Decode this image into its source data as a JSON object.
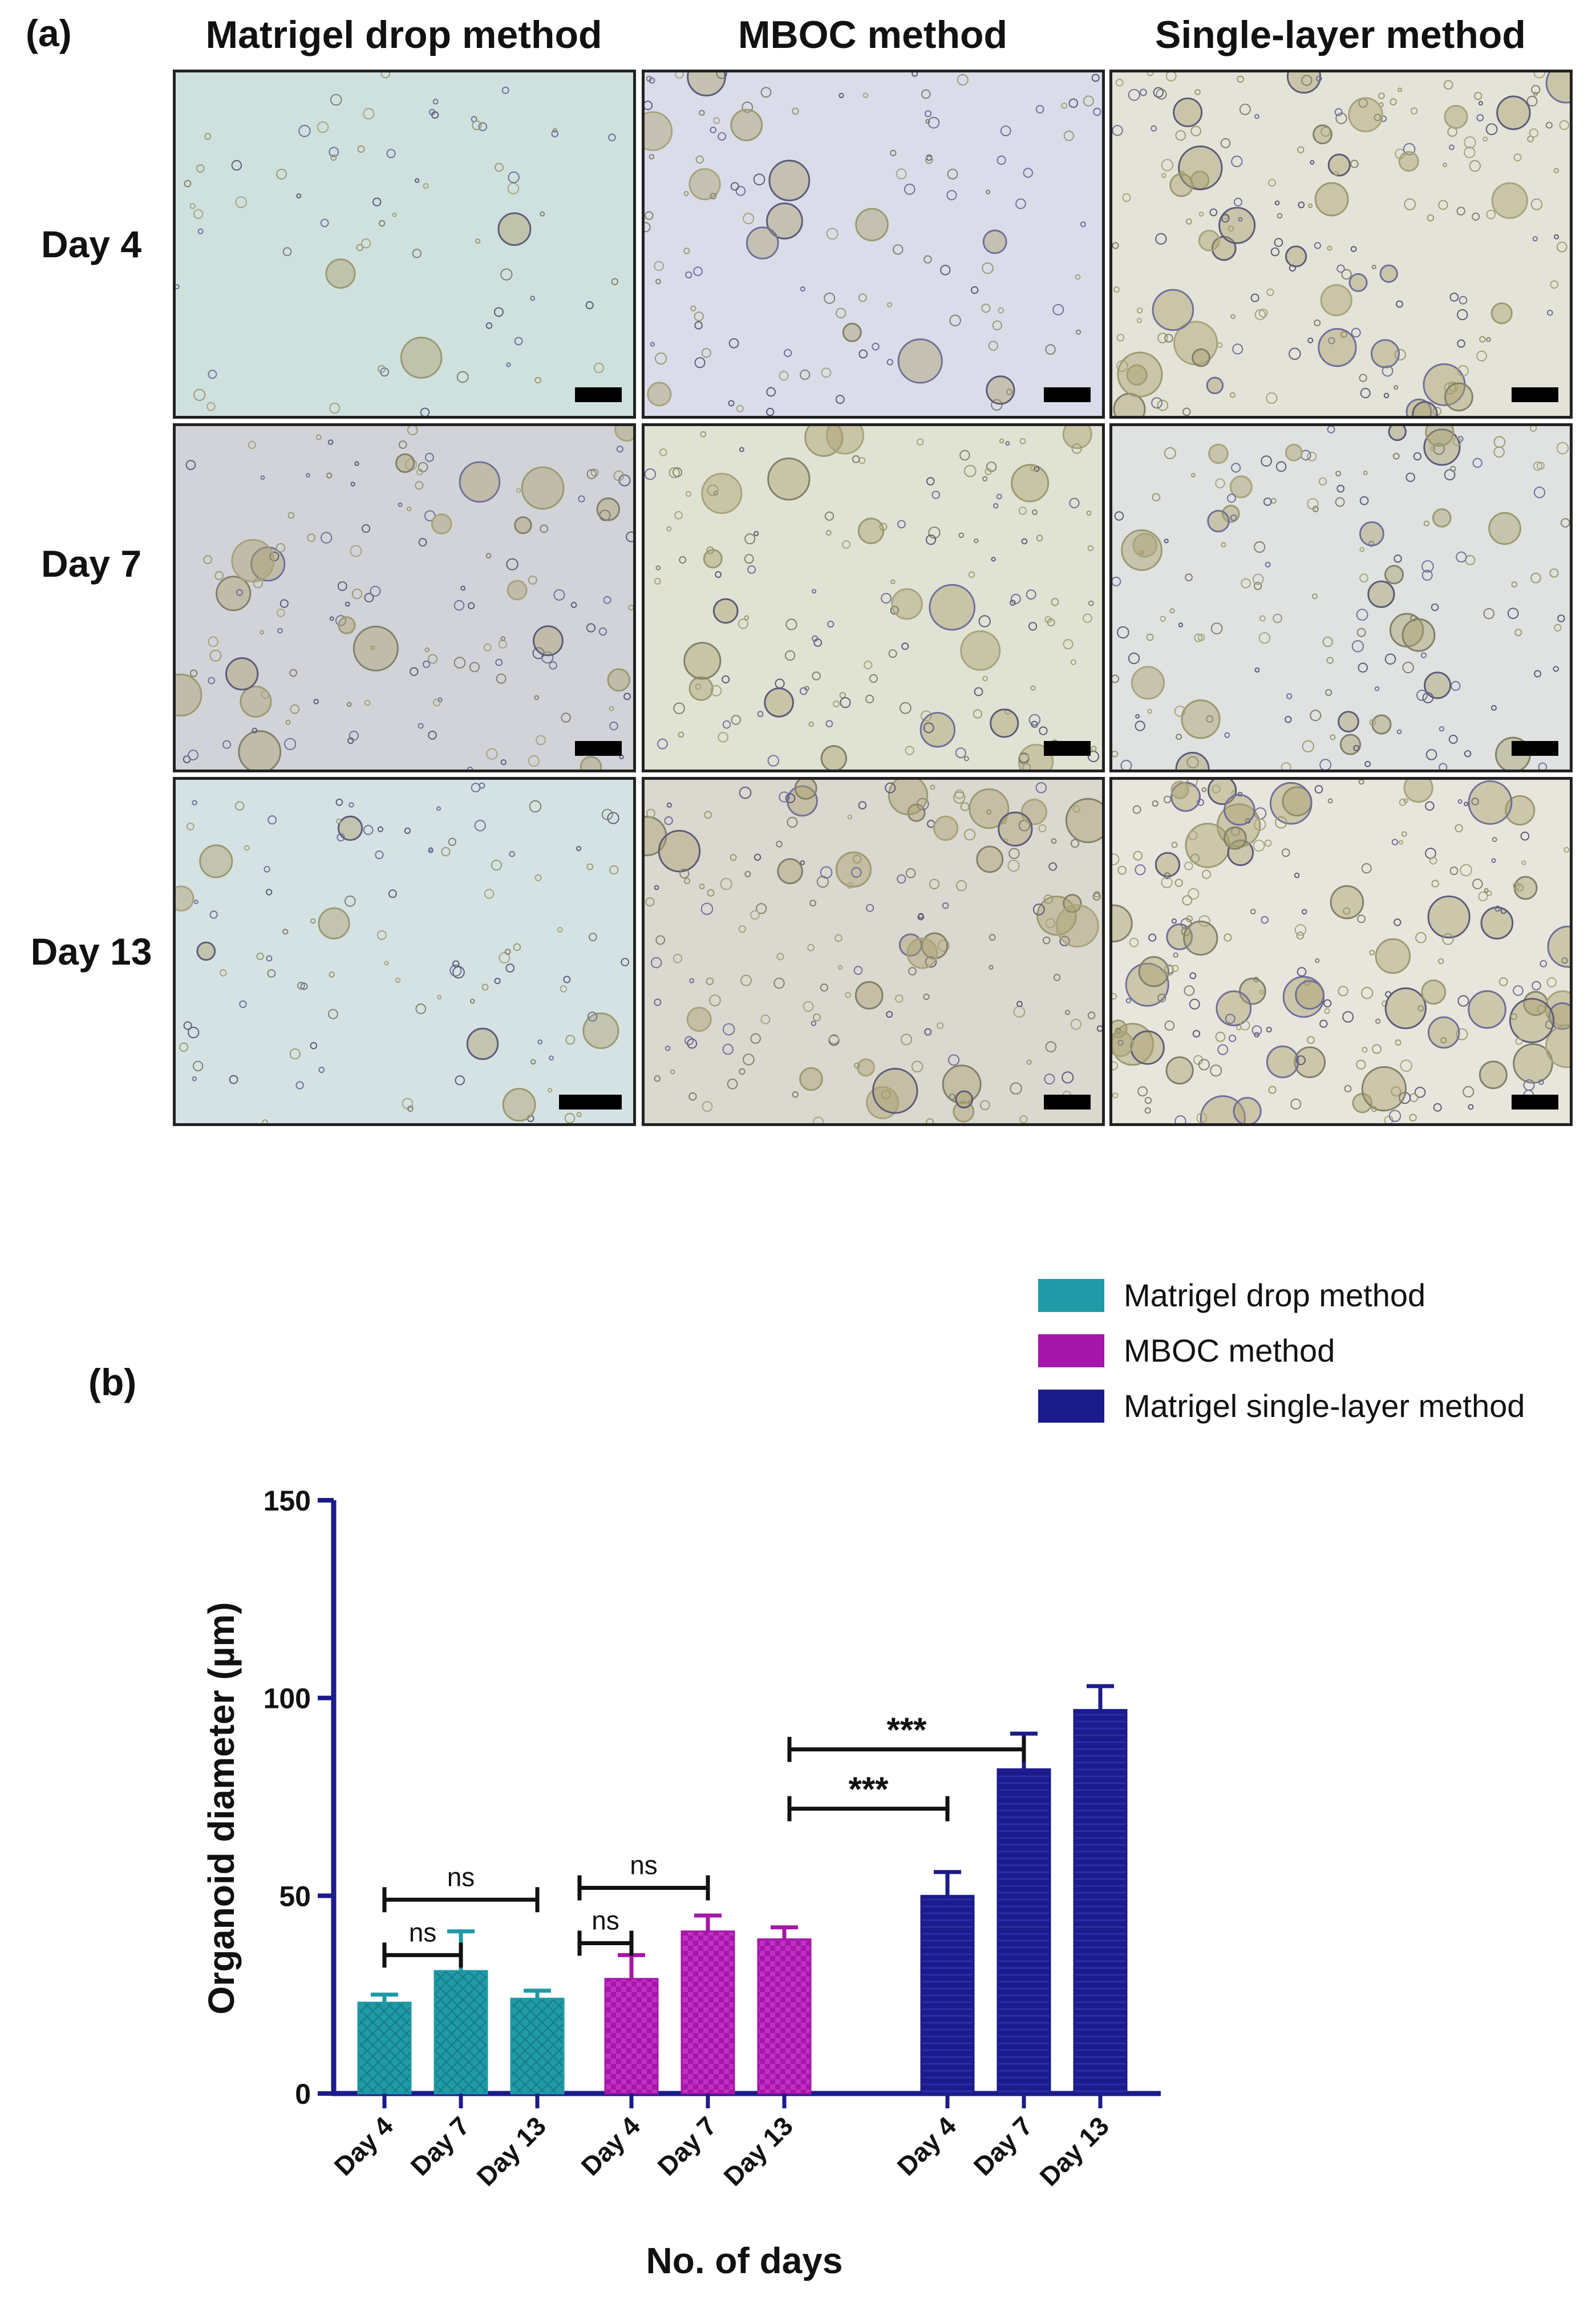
{
  "panel_a": {
    "label": "(a)",
    "columns": [
      "Matrigel drop method",
      "MBOC method",
      "Single-layer method"
    ],
    "rows": [
      "Day 4",
      "Day 7",
      "Day 13"
    ]
  },
  "panel_b": {
    "label": "(b)"
  },
  "colors": {
    "drop": "#1f9aa6",
    "mboc": "#a616a8",
    "single": "#1b1b8c",
    "axis": "#1b1b8c"
  },
  "chart_data": {
    "type": "bar",
    "xlabel": "No. of days",
    "ylabel": "Organoid diameter (µm)",
    "ylim": [
      0,
      150
    ],
    "yticks": [
      0,
      50,
      100,
      150
    ],
    "legend_position": "top-right",
    "groups": [
      {
        "name": "Matrigel drop method",
        "categories": [
          "Day 4",
          "Day 7",
          "Day 13"
        ],
        "values": [
          23,
          31,
          24
        ],
        "errors": [
          2,
          10,
          2
        ]
      },
      {
        "name": "MBOC method",
        "categories": [
          "Day 4",
          "Day 7",
          "Day 13"
        ],
        "values": [
          29,
          41,
          39
        ],
        "errors": [
          6,
          4,
          3
        ]
      },
      {
        "name": "Matrigel single-layer method",
        "categories": [
          "Day 4",
          "Day 7",
          "Day 13"
        ],
        "values": [
          50,
          82,
          97
        ],
        "errors": [
          6,
          9,
          6
        ]
      }
    ],
    "significance": [
      {
        "group": 0,
        "from": 0,
        "to": 1,
        "y": 35,
        "label": "ns"
      },
      {
        "group": 0,
        "from": 0,
        "to": 2,
        "y": 49,
        "label": "ns"
      },
      {
        "group": 1,
        "from": -1,
        "to": 0,
        "y": 38,
        "label": "ns"
      },
      {
        "group": 1,
        "from": -1,
        "to": 1,
        "y": 52,
        "label": "ns"
      },
      {
        "group": 2,
        "from": -1,
        "to": 0,
        "y": 72,
        "label": "***"
      },
      {
        "group": 2,
        "from": -1,
        "to": 1,
        "y": 87,
        "label": "***"
      }
    ]
  }
}
